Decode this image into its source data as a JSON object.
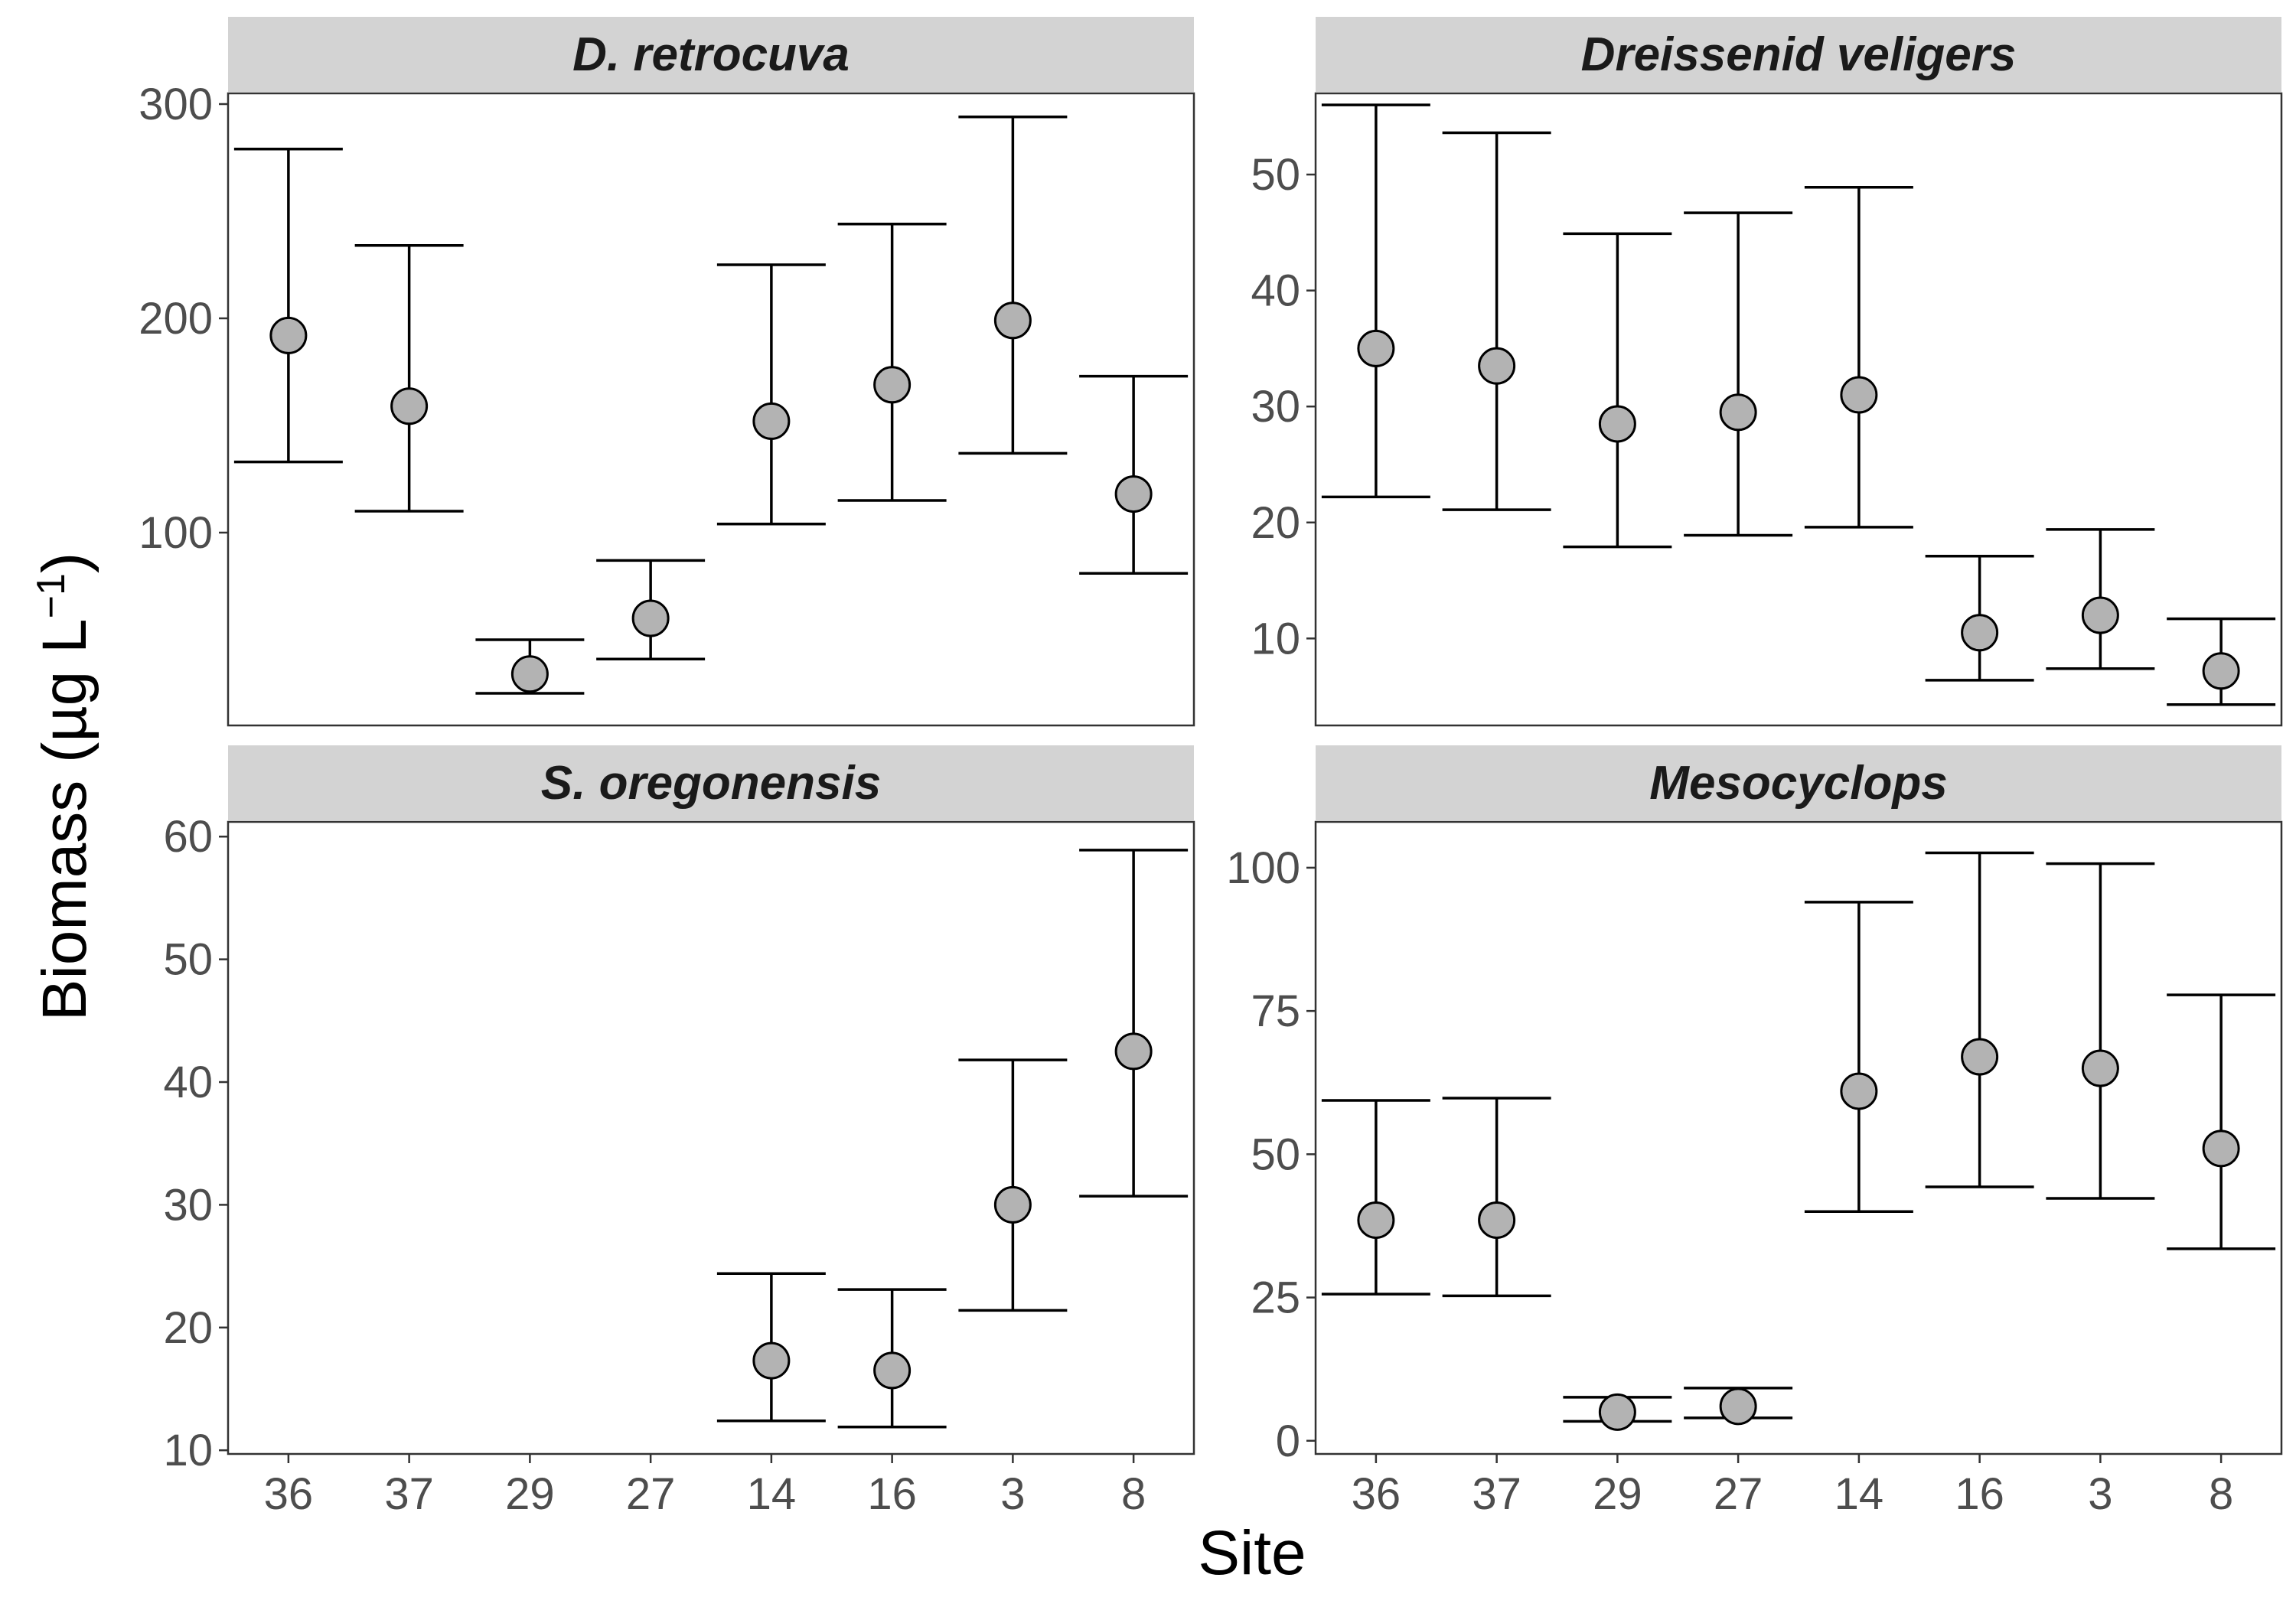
{
  "figure": {
    "ylabel": "Biomass (µg L",
    "ylabel_superscript": "−1",
    "ylabel_close": ")",
    "xlabel": "Site"
  },
  "colors": {
    "point_fill": "#b3b3b3",
    "point_stroke": "#000000",
    "strip_bg": "#d3d3d3",
    "panel_border": "#333333"
  },
  "chart_data": [
    {
      "type": "scatter",
      "title": "D. retrocuva",
      "categories": [
        "36",
        "37",
        "29",
        "27",
        "14",
        "16",
        "3",
        "8"
      ],
      "ylim": [
        10,
        305
      ],
      "yticks": [
        100,
        200,
        300
      ],
      "show_x_ticks": false,
      "series": [
        {
          "mean": [
            192,
            159,
            34,
            60,
            152,
            169,
            199,
            118
          ],
          "lower": [
            133,
            110,
            25,
            41,
            104,
            115,
            137,
            81
          ],
          "upper": [
            279,
            234,
            50,
            87,
            225,
            244,
            294,
            173
          ]
        }
      ]
    },
    {
      "type": "scatter",
      "title": "Dreissenid veligers",
      "categories": [
        "36",
        "37",
        "29",
        "27",
        "14",
        "16",
        "3",
        "8"
      ],
      "ylim": [
        2.5,
        57
      ],
      "yticks": [
        10,
        20,
        30,
        40,
        50
      ],
      "show_x_ticks": false,
      "series": [
        {
          "mean": [
            35,
            33.5,
            28.5,
            29.5,
            31,
            10.5,
            12,
            7.2
          ],
          "lower": [
            22.2,
            21.1,
            17.9,
            18.9,
            19.6,
            6.4,
            7.4,
            4.3
          ],
          "upper": [
            56,
            53.6,
            44.9,
            46.7,
            48.9,
            17.1,
            19.4,
            11.7
          ]
        }
      ]
    },
    {
      "type": "scatter",
      "title": "S. oregonensis",
      "categories": [
        "36",
        "37",
        "29",
        "27",
        "14",
        "16",
        "3",
        "8"
      ],
      "ylim": [
        9.7,
        61.2
      ],
      "yticks": [
        10,
        20,
        30,
        40,
        50,
        60
      ],
      "show_x_ticks": true,
      "series": [
        {
          "mean": [
            null,
            null,
            null,
            null,
            17.3,
            16.5,
            30,
            42.5
          ],
          "lower": [
            null,
            null,
            null,
            null,
            12.4,
            11.9,
            21.4,
            30.7
          ],
          "upper": [
            null,
            null,
            null,
            null,
            24.4,
            23.1,
            41.8,
            58.9
          ]
        }
      ]
    },
    {
      "type": "scatter",
      "title": "Mesocyclops",
      "categories": [
        "36",
        "37",
        "29",
        "27",
        "14",
        "16",
        "3",
        "8"
      ],
      "ylim": [
        -2.3,
        108
      ],
      "yticks": [
        0,
        25,
        50,
        75,
        100
      ],
      "show_x_ticks": true,
      "series": [
        {
          "mean": [
            38.5,
            38.5,
            5,
            6,
            61,
            67,
            65,
            51
          ],
          "lower": [
            25.6,
            25.3,
            3.4,
            4,
            40,
            44.3,
            42.3,
            33.5
          ],
          "upper": [
            59.4,
            59.8,
            7.6,
            9.2,
            94,
            102.6,
            100.7,
            77.8
          ]
        }
      ]
    }
  ]
}
